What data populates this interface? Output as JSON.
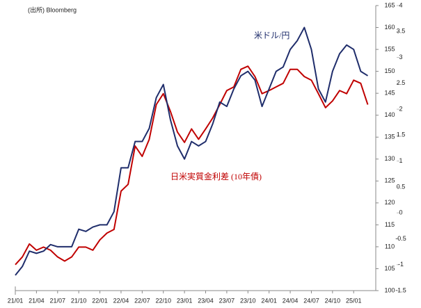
{
  "chart_data": {
    "type": "line",
    "note": "(出所) Bloomberg",
    "categories": [
      "21/01",
      null,
      null,
      "21/04",
      null,
      null,
      "21/07",
      null,
      null,
      "21/10",
      null,
      null,
      "22/01",
      null,
      null,
      "22/04",
      null,
      null,
      "22/07",
      null,
      null,
      "22/10",
      null,
      null,
      "23/01",
      null,
      null,
      "23/04",
      null,
      null,
      "23/07",
      null,
      null,
      "23/10",
      null,
      null,
      "24/01",
      null,
      null,
      "24/04",
      null,
      null,
      "24/07",
      null,
      null,
      "24/10",
      null,
      null,
      "25/01",
      null,
      null
    ],
    "series": [
      {
        "name": "米ドル/円",
        "color": "#1f2d6b",
        "values": [
          103.5,
          105.5,
          109,
          108.5,
          109,
          110.5,
          110,
          110,
          110,
          114,
          113.5,
          114.5,
          115,
          115,
          118,
          128,
          128,
          134,
          134,
          137,
          144,
          147,
          139,
          133,
          130,
          134,
          133,
          134,
          138,
          143,
          142,
          146,
          149,
          150,
          148,
          142,
          146,
          150,
          151,
          155,
          157,
          160,
          155,
          146,
          143,
          150,
          154,
          156,
          155,
          150,
          149
        ]
      },
      {
        "name": "日米実質金利差 (10年債)",
        "color": "#c00000",
        "axis": "y2",
        "values": [
          -1.0,
          -0.85,
          -0.6,
          -0.72,
          -0.66,
          -0.72,
          -0.85,
          -0.93,
          -0.85,
          -0.66,
          -0.66,
          -0.72,
          -0.52,
          -0.39,
          -0.32,
          0.42,
          0.55,
          1.29,
          1.09,
          1.42,
          2.09,
          2.3,
          1.96,
          1.56,
          1.36,
          1.62,
          1.42,
          1.62,
          1.83,
          2.09,
          2.36,
          2.43,
          2.77,
          2.83,
          2.63,
          2.3,
          2.36,
          2.43,
          2.5,
          2.77,
          2.77,
          2.63,
          2.56,
          2.3,
          2.03,
          2.16,
          2.36,
          2.3,
          2.56,
          2.5,
          2.09
        ]
      }
    ],
    "ylim": [
      100,
      165
    ],
    "yticks": [
      100,
      105,
      110,
      115,
      120,
      125,
      130,
      135,
      140,
      145,
      150,
      155,
      160,
      165
    ],
    "y2lim": [
      -1.5,
      4
    ],
    "y2ticks": [
      -1.5,
      -1,
      -0.5,
      0,
      0.5,
      1,
      1.5,
      2,
      2.5,
      3,
      3.5,
      4
    ]
  }
}
